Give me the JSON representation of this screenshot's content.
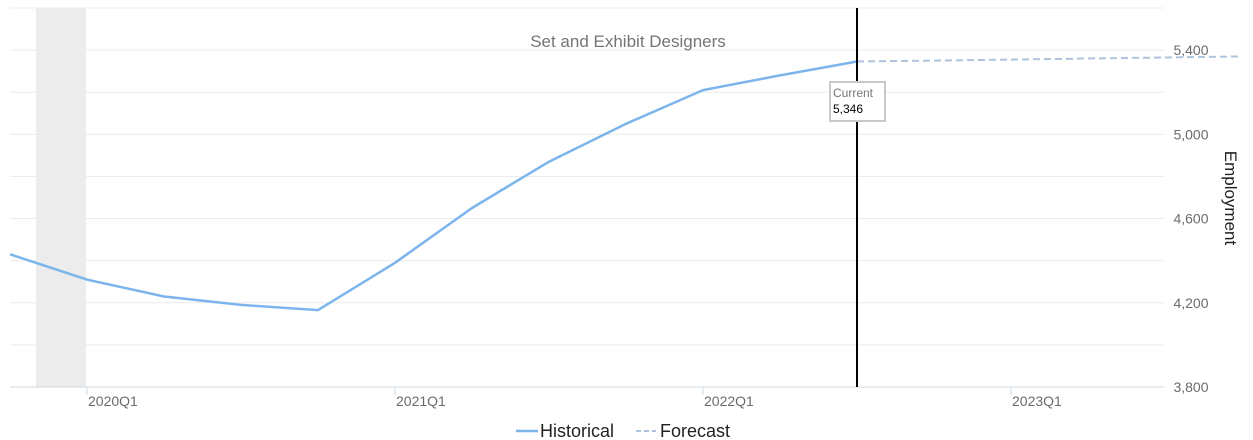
{
  "chart_data": {
    "type": "line",
    "title": "Set and Exhibit Designers",
    "ylabel": "Employment",
    "ylim": [
      3800,
      5600
    ],
    "yticks": [
      3800,
      4200,
      4600,
      5000,
      5400
    ],
    "ytick_labels": [
      "3,800",
      "4,200",
      "4,600",
      "5,000",
      "5,400"
    ],
    "y_axis_side": "right",
    "xticks": [
      "2020Q1",
      "2021Q1",
      "2022Q1",
      "2023Q1"
    ],
    "xrange": [
      "2019Q4",
      "2023Q4"
    ],
    "recession_shading": {
      "from": "2020Q1",
      "to": "2020Q2"
    },
    "current_marker": {
      "x": "2022Q3",
      "label": "Current",
      "value_label": "5,346"
    },
    "series": [
      {
        "name": "Historical",
        "style": "solid",
        "color": "#7cb5ec",
        "points": [
          {
            "x": "2019Q4",
            "y": 4430
          },
          {
            "x": "2020Q1",
            "y": 4310
          },
          {
            "x": "2020Q2",
            "y": 4230
          },
          {
            "x": "2020Q3",
            "y": 4190
          },
          {
            "x": "2020Q4",
            "y": 4165
          },
          {
            "x": "2021Q1",
            "y": 4390
          },
          {
            "x": "2021Q2",
            "y": 4650
          },
          {
            "x": "2021Q3",
            "y": 4870
          },
          {
            "x": "2021Q4",
            "y": 5050
          },
          {
            "x": "2022Q1",
            "y": 5210
          },
          {
            "x": "2022Q2",
            "y": 5280
          },
          {
            "x": "2022Q3",
            "y": 5346
          }
        ]
      },
      {
        "name": "Forecast",
        "style": "dashed",
        "color": "#aec4dc",
        "points": [
          {
            "x": "2022Q3",
            "y": 5346
          },
          {
            "x": "2022Q4",
            "y": 5350
          },
          {
            "x": "2023Q1",
            "y": 5355
          },
          {
            "x": "2023Q2",
            "y": 5360
          },
          {
            "x": "2023Q3",
            "y": 5365
          },
          {
            "x": "2023Q4",
            "y": 5370
          }
        ]
      }
    ],
    "legend": {
      "position": "bottom-center",
      "items": [
        "Historical",
        "Forecast"
      ]
    },
    "grid": true
  }
}
